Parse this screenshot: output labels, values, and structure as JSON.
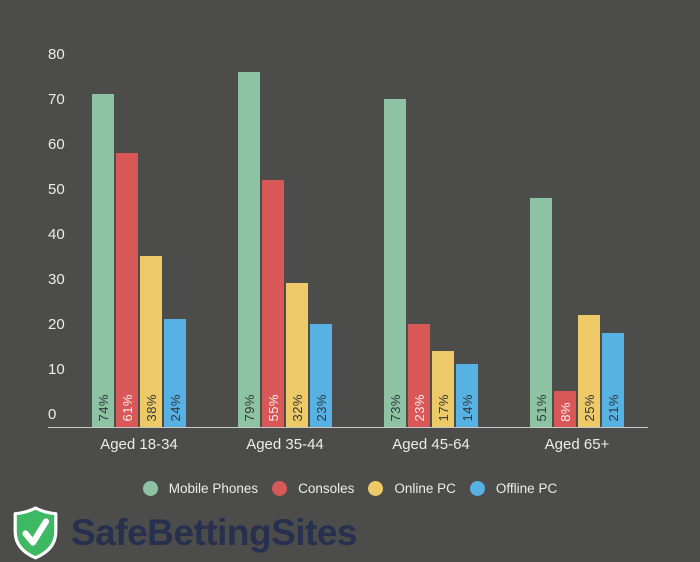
{
  "colors": {
    "background": "#4c4c4a",
    "axis_line": "#c9c9c6",
    "tick_text": "#edecea",
    "dark_bar_label": "#32383d",
    "light_bar_label": "#f6efee"
  },
  "chart_data": {
    "type": "bar",
    "categories": [
      "Aged 18-34",
      "Aged 35-44",
      "Aged 45-64",
      "Aged 65+"
    ],
    "series": [
      {
        "name": "Mobile Phones",
        "color": "#8dc3a3",
        "label_style": "dark",
        "values": [
          74,
          79,
          73,
          51
        ]
      },
      {
        "name": "Consoles",
        "color": "#d75856",
        "label_style": "light",
        "values": [
          61,
          55,
          23,
          8
        ]
      },
      {
        "name": "Online PC",
        "color": "#edc967",
        "label_style": "dark",
        "values": [
          38,
          32,
          17,
          25
        ]
      },
      {
        "name": "Offline PC",
        "color": "#57b1e3",
        "label_style": "dark",
        "values": [
          24,
          23,
          14,
          21
        ]
      }
    ],
    "value_suffix": "%",
    "title": "",
    "xlabel": "",
    "ylabel": "",
    "ylim": [
      0,
      80
    ],
    "ytick_step": 10,
    "yticks": [
      "0",
      "10",
      "20",
      "30",
      "40",
      "50",
      "60",
      "70",
      "80"
    ],
    "grid": false,
    "legend_position": "bottom",
    "bar_value_labels": [
      "74%",
      "61%",
      "38%",
      "24%",
      "79%",
      "55%",
      "32%",
      "23%",
      "73%",
      "23%",
      "17%",
      "14%",
      "51%",
      "8%",
      "25%",
      "21%"
    ]
  },
  "branding": {
    "logo_text": "SafeBettingSites",
    "shield_color": "#3db863",
    "shield_border": "#ffffff",
    "check_color": "#ffffff",
    "text_color": "#27304f",
    "icon": "shield-check"
  }
}
